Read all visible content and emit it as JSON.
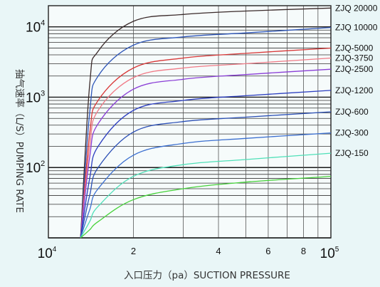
{
  "chart_data": {
    "type": "line",
    "xscale": "log",
    "yscale": "log",
    "xlim": [
      10000,
      100000
    ],
    "ylim": [
      10,
      20000
    ],
    "grid": true,
    "xlabel": "入口压力（pa）SUCTION PRESSURE",
    "ylabel": "抽气速率（L/S）PUMPING RATE",
    "x_ticks": [
      {
        "value": 10000,
        "base": "10",
        "exp": "4"
      },
      {
        "value": 20000,
        "label": "2"
      },
      {
        "value": 40000,
        "label": "4"
      },
      {
        "value": 60000,
        "label": "6"
      },
      {
        "value": 80000,
        "label": "8"
      },
      {
        "value": 100000,
        "base": "10",
        "exp": "5"
      }
    ],
    "y_ticks": [
      {
        "value": 100,
        "base": "10",
        "exp": "2"
      },
      {
        "value": 1000,
        "base": "10",
        "exp": "3"
      },
      {
        "value": 10000,
        "base": "10",
        "exp": "4"
      }
    ],
    "series": [
      {
        "name": "ZJQ 20000",
        "color": "#3a2a2a",
        "values": [
          {
            "x": 13000,
            "y": 10
          },
          {
            "x": 14000,
            "y": 1500
          },
          {
            "x": 15000,
            "y": 4500
          },
          {
            "x": 20000,
            "y": 12000
          },
          {
            "x": 30000,
            "y": 15000
          },
          {
            "x": 50000,
            "y": 16800
          },
          {
            "x": 100000,
            "y": 18500
          }
        ]
      },
      {
        "name": "ZJQ 10000",
        "color": "#2d55b8",
        "values": [
          {
            "x": 13000,
            "y": 10
          },
          {
            "x": 14000,
            "y": 600
          },
          {
            "x": 15000,
            "y": 2000
          },
          {
            "x": 20000,
            "y": 5500
          },
          {
            "x": 30000,
            "y": 7200
          },
          {
            "x": 50000,
            "y": 8200
          },
          {
            "x": 100000,
            "y": 9800
          }
        ]
      },
      {
        "name": "ZJQ-5000",
        "color": "#d83838",
        "values": [
          {
            "x": 13000,
            "y": 10
          },
          {
            "x": 14000,
            "y": 300
          },
          {
            "x": 15000,
            "y": 900
          },
          {
            "x": 20000,
            "y": 2600
          },
          {
            "x": 30000,
            "y": 3600
          },
          {
            "x": 50000,
            "y": 4200
          },
          {
            "x": 100000,
            "y": 5000
          }
        ]
      },
      {
        "name": "ZJQ-3750",
        "color": "#f07a86",
        "values": [
          {
            "x": 13000,
            "y": 10
          },
          {
            "x": 14000,
            "y": 200
          },
          {
            "x": 15000,
            "y": 650
          },
          {
            "x": 20000,
            "y": 1900
          },
          {
            "x": 30000,
            "y": 2600
          },
          {
            "x": 50000,
            "y": 3000
          },
          {
            "x": 100000,
            "y": 3600
          }
        ]
      },
      {
        "name": "ZJQ-2500",
        "color": "#8a3ed6",
        "values": [
          {
            "x": 13000,
            "y": 10
          },
          {
            "x": 14000,
            "y": 140
          },
          {
            "x": 15000,
            "y": 420
          },
          {
            "x": 20000,
            "y": 1300
          },
          {
            "x": 30000,
            "y": 1800
          },
          {
            "x": 50000,
            "y": 2100
          },
          {
            "x": 100000,
            "y": 2500
          }
        ]
      },
      {
        "name": "ZJQ-1200",
        "color": "#2d3fc0",
        "values": [
          {
            "x": 13000,
            "y": 10
          },
          {
            "x": 14000,
            "y": 70
          },
          {
            "x": 15000,
            "y": 200
          },
          {
            "x": 20000,
            "y": 650
          },
          {
            "x": 30000,
            "y": 900
          },
          {
            "x": 50000,
            "y": 1050
          },
          {
            "x": 100000,
            "y": 1250
          }
        ]
      },
      {
        "name": "ZJQ-600",
        "color": "#2b4fb5",
        "values": [
          {
            "x": 13000,
            "y": 10
          },
          {
            "x": 14000,
            "y": 40
          },
          {
            "x": 15000,
            "y": 100
          },
          {
            "x": 20000,
            "y": 320
          },
          {
            "x": 30000,
            "y": 450
          },
          {
            "x": 50000,
            "y": 520
          },
          {
            "x": 100000,
            "y": 620
          }
        ]
      },
      {
        "name": "ZJQ-300",
        "color": "#3b6fd0",
        "values": [
          {
            "x": 13000,
            "y": 10
          },
          {
            "x": 14000,
            "y": 25
          },
          {
            "x": 15000,
            "y": 50
          },
          {
            "x": 20000,
            "y": 150
          },
          {
            "x": 30000,
            "y": 220
          },
          {
            "x": 50000,
            "y": 260
          },
          {
            "x": 100000,
            "y": 310
          }
        ]
      },
      {
        "name": "ZJQ-150",
        "color": "#4fe0b8",
        "values": [
          {
            "x": 13000,
            "y": 10
          },
          {
            "x": 14000,
            "y": 17
          },
          {
            "x": 15000,
            "y": 28
          },
          {
            "x": 20000,
            "y": 75
          },
          {
            "x": 30000,
            "y": 110
          },
          {
            "x": 50000,
            "y": 130
          },
          {
            "x": 100000,
            "y": 160
          }
        ]
      },
      {
        "name": "",
        "color": "#46d23a",
        "values": [
          {
            "x": 13000,
            "y": 10
          },
          {
            "x": 14000,
            "y": 13
          },
          {
            "x": 15000,
            "y": 17
          },
          {
            "x": 20000,
            "y": 35
          },
          {
            "x": 30000,
            "y": 50
          },
          {
            "x": 50000,
            "y": 62
          },
          {
            "x": 100000,
            "y": 75
          }
        ]
      }
    ]
  }
}
